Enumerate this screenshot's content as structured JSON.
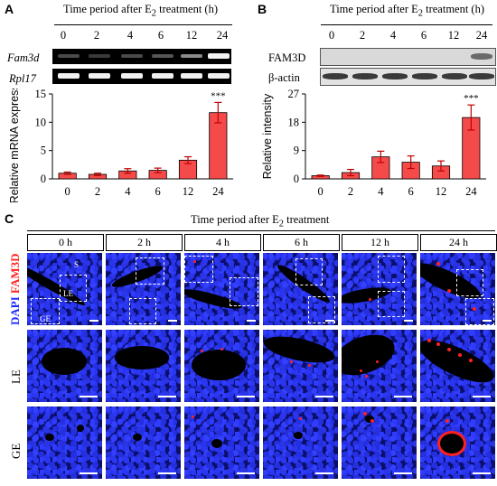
{
  "panel_a": {
    "label": "A",
    "header": "Time period after E",
    "header_sub": "2",
    "header_suffix": " treatment (h)",
    "timepoints": [
      "0",
      "2",
      "4",
      "6",
      "12",
      "24"
    ],
    "gel_rows": [
      "Fam3d",
      "Rpl17"
    ],
    "ylabel": "Relative mRNA expression",
    "significance": "***"
  },
  "panel_b": {
    "label": "B",
    "header": "Time period after E",
    "header_sub": "2",
    "header_suffix": " treatment (h)",
    "timepoints": [
      "0",
      "2",
      "4",
      "6",
      "12",
      "24"
    ],
    "blot_rows": [
      "FAM3D",
      "β-actin"
    ],
    "ylabel": "Relative intensity",
    "significance": "***"
  },
  "panel_c": {
    "label": "C",
    "header": "Time period after E",
    "header_sub": "2",
    "header_suffix": " treatment",
    "columns": [
      "0 h",
      "2 h",
      "4 h",
      "6 h",
      "12 h",
      "24 h"
    ],
    "stain_dapi": "DAPI",
    "stain_fam3d": "FAM3D",
    "row_labels": [
      "LE",
      "GE"
    ],
    "tissue_labels": [
      "S",
      "LE",
      "GE"
    ]
  },
  "colors": {
    "bar": "#f44a4a",
    "bar_edge": "#000000",
    "errorbar": "#c00000",
    "dapi": "#1f2bff",
    "fam3d": "#ff2020"
  },
  "chart_data": [
    {
      "type": "bar",
      "categories": [
        "0",
        "2",
        "4",
        "6",
        "12",
        "24"
      ],
      "values": [
        1.0,
        0.8,
        1.4,
        1.5,
        3.3,
        11.7
      ],
      "errors": [
        0.2,
        0.2,
        0.4,
        0.4,
        0.6,
        1.8
      ],
      "ylabel": "Relative mRNA expression",
      "ylim": [
        0,
        15
      ],
      "yticks": [
        0,
        5,
        10,
        15
      ],
      "annotation": "***"
    },
    {
      "type": "bar",
      "categories": [
        "0",
        "2",
        "4",
        "6",
        "12",
        "24"
      ],
      "values": [
        1.0,
        2.0,
        7.0,
        5.3,
        4.1,
        19.5
      ],
      "errors": [
        0.2,
        1.0,
        1.8,
        2.0,
        1.6,
        4.0
      ],
      "ylabel": "Relative intensity",
      "ylim": [
        0,
        27
      ],
      "yticks": [
        0,
        9,
        18,
        27
      ],
      "annotation": "***"
    }
  ]
}
